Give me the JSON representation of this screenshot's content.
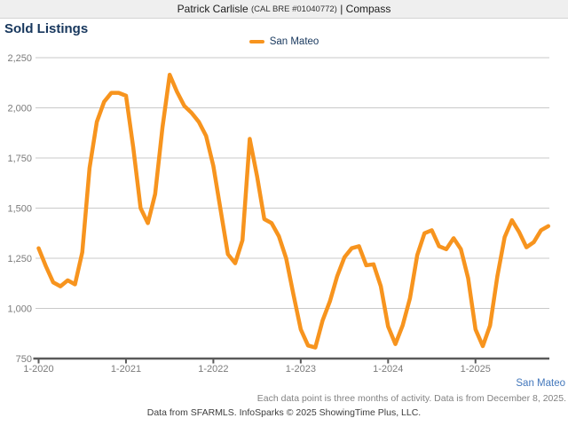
{
  "header": {
    "agent": "Patrick Carlisle",
    "license": "(CAL BRE #01040772)",
    "separator": "|",
    "brokerage": "Compass"
  },
  "title": "Sold Listings",
  "legend": {
    "label": "San Mateo",
    "color": "#F7941E"
  },
  "footer": {
    "series_label": "San Mateo",
    "data_note": "Each data point is three months of activity. Data is from December 8, 2025.",
    "credit": "Data from SFARMLS. InfoSparks © 2025 ShowingTime Plus, LLC."
  },
  "colors": {
    "line": "#F7941E",
    "title_navy": "#17375D",
    "series_tag_blue": "#4478BC",
    "grid_gray": "#C9C9C9",
    "axis_gray": "#5A5A5A",
    "tick_label_gray": "#7B7B7B"
  },
  "chart_data": {
    "type": "line",
    "title": "Sold Listings",
    "ylim": [
      750,
      2250
    ],
    "grid": "horizontal",
    "legend_position": "top-center",
    "y_ticks": [
      750,
      1000,
      1250,
      1500,
      1750,
      2000,
      2250
    ],
    "y_tick_labels": [
      "750",
      "1,000",
      "1,250",
      "1,500",
      "1,750",
      "2,000",
      "2,250"
    ],
    "x_tick_labels": [
      "1-2020",
      "1-2021",
      "1-2022",
      "1-2023",
      "1-2024",
      "1-2025"
    ],
    "x": [
      "1-2020",
      "2-2020",
      "3-2020",
      "4-2020",
      "5-2020",
      "6-2020",
      "7-2020",
      "8-2020",
      "9-2020",
      "10-2020",
      "11-2020",
      "12-2020",
      "1-2021",
      "2-2021",
      "3-2021",
      "4-2021",
      "5-2021",
      "6-2021",
      "7-2021",
      "8-2021",
      "9-2021",
      "10-2021",
      "11-2021",
      "12-2021",
      "1-2022",
      "2-2022",
      "3-2022",
      "4-2022",
      "5-2022",
      "6-2022",
      "7-2022",
      "8-2022",
      "9-2022",
      "10-2022",
      "11-2022",
      "12-2022",
      "1-2023",
      "2-2023",
      "3-2023",
      "4-2023",
      "5-2023",
      "6-2023",
      "7-2023",
      "8-2023",
      "9-2023",
      "10-2023",
      "11-2023",
      "12-2023",
      "1-2024",
      "2-2024",
      "3-2024",
      "4-2024",
      "5-2024",
      "6-2024",
      "7-2024",
      "8-2024",
      "9-2024",
      "10-2024",
      "11-2024",
      "12-2024",
      "1-2025",
      "2-2025",
      "3-2025",
      "4-2025",
      "5-2025",
      "6-2025",
      "7-2025",
      "8-2025",
      "9-2025",
      "10-2025",
      "11-2025"
    ],
    "series": [
      {
        "name": "San Mateo",
        "color": "#F7941E",
        "values": [
          1300,
          1210,
          1130,
          1110,
          1140,
          1120,
          1280,
          1700,
          1930,
          2030,
          2075,
          2075,
          2060,
          1800,
          1500,
          1425,
          1570,
          1900,
          2165,
          2080,
          2010,
          1975,
          1930,
          1860,
          1710,
          1490,
          1270,
          1225,
          1340,
          1845,
          1660,
          1445,
          1425,
          1360,
          1250,
          1070,
          895,
          815,
          805,
          940,
          1035,
          1160,
          1255,
          1300,
          1310,
          1215,
          1220,
          1110,
          910,
          822,
          915,
          1050,
          1265,
          1375,
          1390,
          1310,
          1295,
          1350,
          1295,
          1150,
          895,
          812,
          915,
          1160,
          1355,
          1440,
          1380,
          1305,
          1330,
          1390,
          1410
        ]
      }
    ]
  }
}
